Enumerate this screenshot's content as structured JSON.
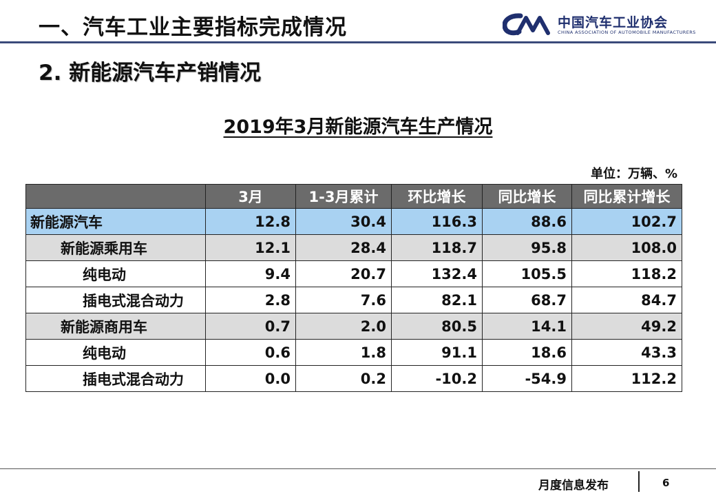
{
  "header": {
    "title": "一、汽车工业主要指标完成情况",
    "logo": {
      "icon": "caam-logo-icon",
      "brand_color": "#1f2f6e",
      "name_cn": "中国汽车工业协会",
      "name_en": "CHINA ASSOCIATION OF AUTOMOBILE MANUFACTURERS"
    }
  },
  "section": {
    "subtitle": "2. 新能源汽车产销情况"
  },
  "table": {
    "title": "2019年3月新能源汽车生产情况",
    "unit": "单位：万辆、%",
    "columns": [
      "",
      "3月",
      "1-3月累计",
      "环比增长",
      "同比增长",
      "同比累计增长"
    ],
    "rows": [
      {
        "label": "新能源汽车",
        "level": 0,
        "values": [
          "12.8",
          "30.4",
          "116.3",
          "88.6",
          "102.7"
        ]
      },
      {
        "label": "新能源乘用车",
        "level": 1,
        "values": [
          "12.1",
          "28.4",
          "118.7",
          "95.8",
          "108.0"
        ]
      },
      {
        "label": "纯电动",
        "level": 2,
        "values": [
          "9.4",
          "20.7",
          "132.4",
          "105.5",
          "118.2"
        ]
      },
      {
        "label": "插电式混合动力",
        "level": 2,
        "values": [
          "2.8",
          "7.6",
          "82.1",
          "68.7",
          "84.7"
        ]
      },
      {
        "label": "新能源商用车",
        "level": 1,
        "values": [
          "0.7",
          "2.0",
          "80.5",
          "14.1",
          "49.2"
        ]
      },
      {
        "label": "纯电动",
        "level": 2,
        "values": [
          "0.6",
          "1.8",
          "91.1",
          "18.6",
          "43.3"
        ]
      },
      {
        "label": "插电式混合动力",
        "level": 2,
        "values": [
          "0.0",
          "0.2",
          "-10.2",
          "-54.9",
          "112.2"
        ]
      }
    ],
    "colors": {
      "header_bg": "#6b6b6b",
      "level0_bg": "#a9d2f2",
      "level1_bg": "#dcdcdc"
    }
  },
  "footer": {
    "text": "月度信息发布",
    "page": "6"
  }
}
